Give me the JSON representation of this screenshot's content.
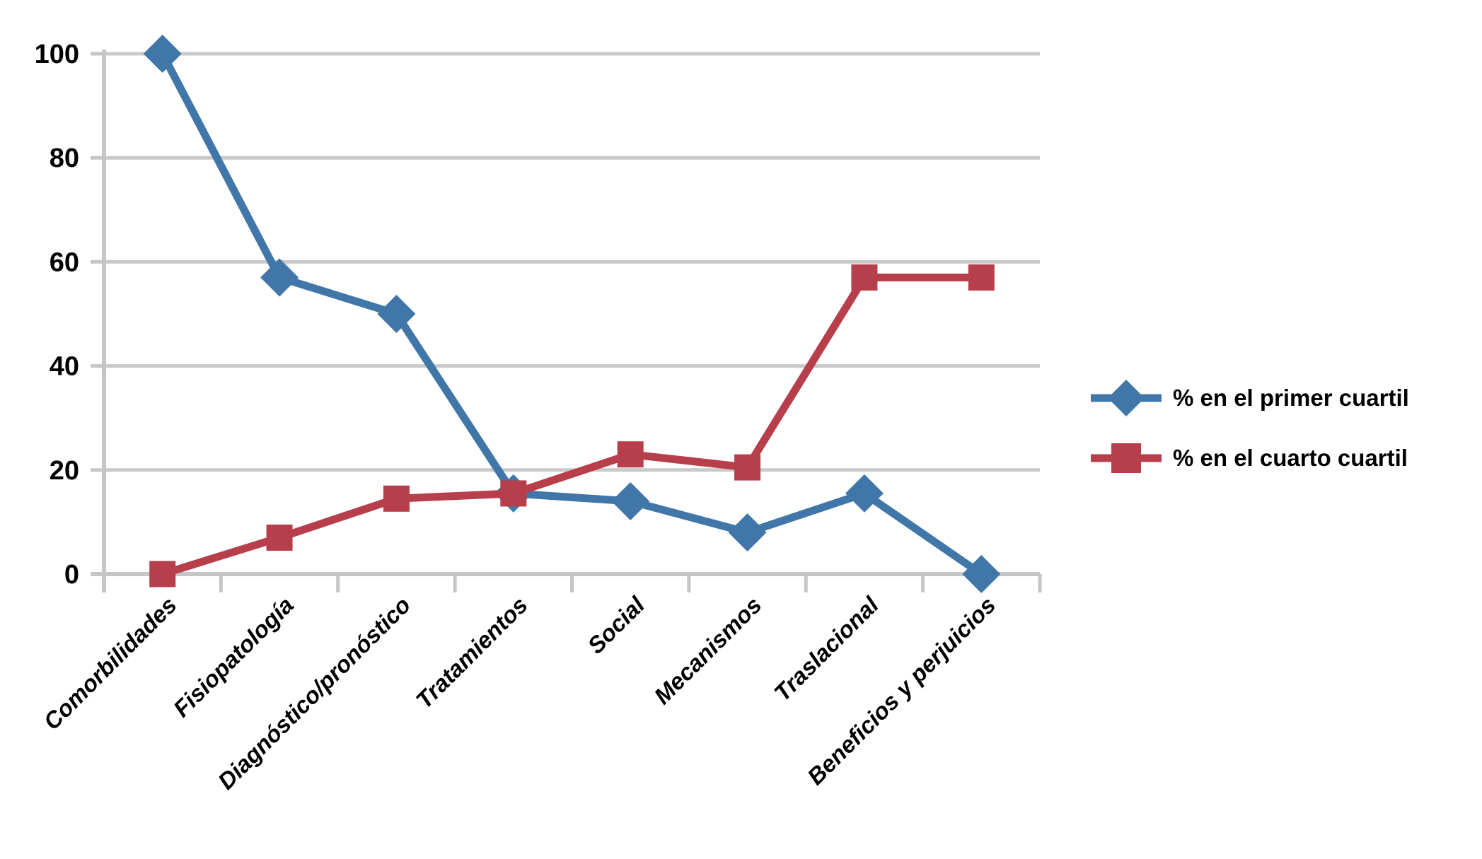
{
  "chart_data": {
    "type": "line",
    "title": "",
    "categories": [
      "Comorbilidades",
      "Fisiopatología",
      "Diagnóstico/pronóstico",
      "Tratamientos",
      "Social",
      "Mecanismos",
      "Traslacional",
      "Beneficios y perjuicios"
    ],
    "series": [
      {
        "name": "% en el primer cuartil",
        "marker": "diamond",
        "color": "#4076A8",
        "values": [
          100,
          57,
          50,
          15.5,
          14,
          8,
          15.5,
          0
        ]
      },
      {
        "name": "% en el cuarto cuartil",
        "marker": "square",
        "color": "#B73E4B",
        "values": [
          0,
          7,
          14.5,
          15.5,
          23,
          20.5,
          57,
          57
        ]
      }
    ],
    "xlabel": "",
    "ylabel": "",
    "ylim": [
      0,
      100
    ],
    "yticks": [
      0,
      20,
      40,
      60,
      80,
      100
    ],
    "grid": "horizontal",
    "legend_position": "right-middle",
    "colors": {
      "gridline": "#C9C9C9",
      "axis": "#C6C6C6",
      "tick_text": "#000000",
      "background": "#FFFFFF"
    }
  }
}
